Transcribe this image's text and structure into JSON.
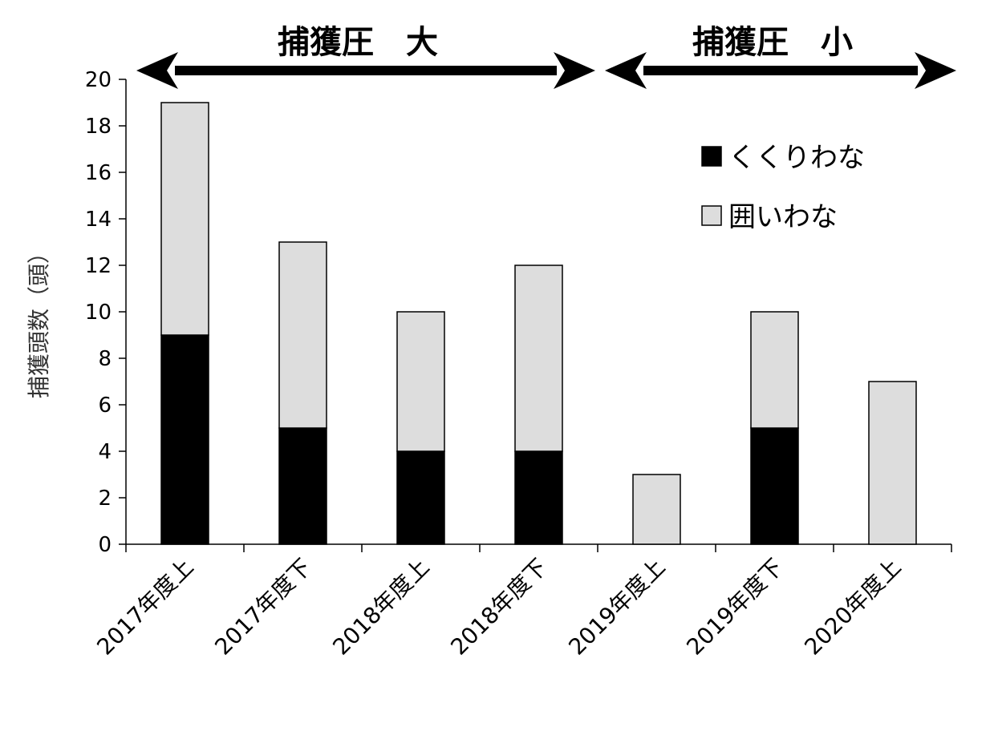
{
  "chart_data": {
    "type": "bar",
    "stacked": true,
    "categories": [
      "2017年度上",
      "2017年度下",
      "2018年度上",
      "2018年度下",
      "2019年度上",
      "2019年度下",
      "2020年度上"
    ],
    "series": [
      {
        "name": "くくりわな",
        "color": "#000000",
        "values": [
          9,
          5,
          4,
          4,
          0,
          5,
          0
        ]
      },
      {
        "name": "囲いわな",
        "color": "#dddddd",
        "values": [
          10,
          8,
          6,
          8,
          3,
          5,
          7
        ]
      }
    ],
    "ylabel": "捕獲頭数（頭）",
    "ylim": [
      0,
      20
    ],
    "yticks": [
      0,
      2,
      4,
      6,
      8,
      10,
      12,
      14,
      16,
      18,
      20
    ],
    "legend_position": "top-right",
    "grid": false,
    "annotations": [
      {
        "text": "捕獲圧　大",
        "from_category": 0,
        "to_category": 3
      },
      {
        "text": "捕獲圧　小",
        "from_category": 4,
        "to_category": 6
      }
    ]
  }
}
